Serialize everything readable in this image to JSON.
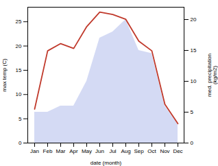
{
  "chart_data": {
    "type": "line",
    "xlabel": "date (month)",
    "ylabel": "max temp (C)",
    "y2label": "med. precipitation\n(kg/m2)",
    "categories": [
      "Jan",
      "Feb",
      "Mar",
      "Apr",
      "May",
      "Jun",
      "Jul",
      "Aug",
      "Sep",
      "Oct",
      "Nov",
      "Dec"
    ],
    "series": [
      {
        "type": "area",
        "axis": "y2",
        "color": "#c5cdf0",
        "values": [
          5,
          5,
          6,
          6,
          10,
          17,
          18,
          20,
          15,
          14.5,
          6,
          3
        ]
      },
      {
        "type": "line",
        "color": "#c0392b",
        "values": [
          7,
          19,
          20.5,
          19.5,
          24,
          27,
          26.5,
          25.5,
          21,
          19,
          8,
          4
        ]
      }
    ],
    "ylim": [
      0,
      28
    ],
    "yticks": [
      0,
      5,
      10,
      15,
      20,
      25
    ],
    "y2lim": [
      0,
      22
    ],
    "y2ticks": [
      0,
      5,
      10,
      15,
      20
    ],
    "grid": false
  }
}
